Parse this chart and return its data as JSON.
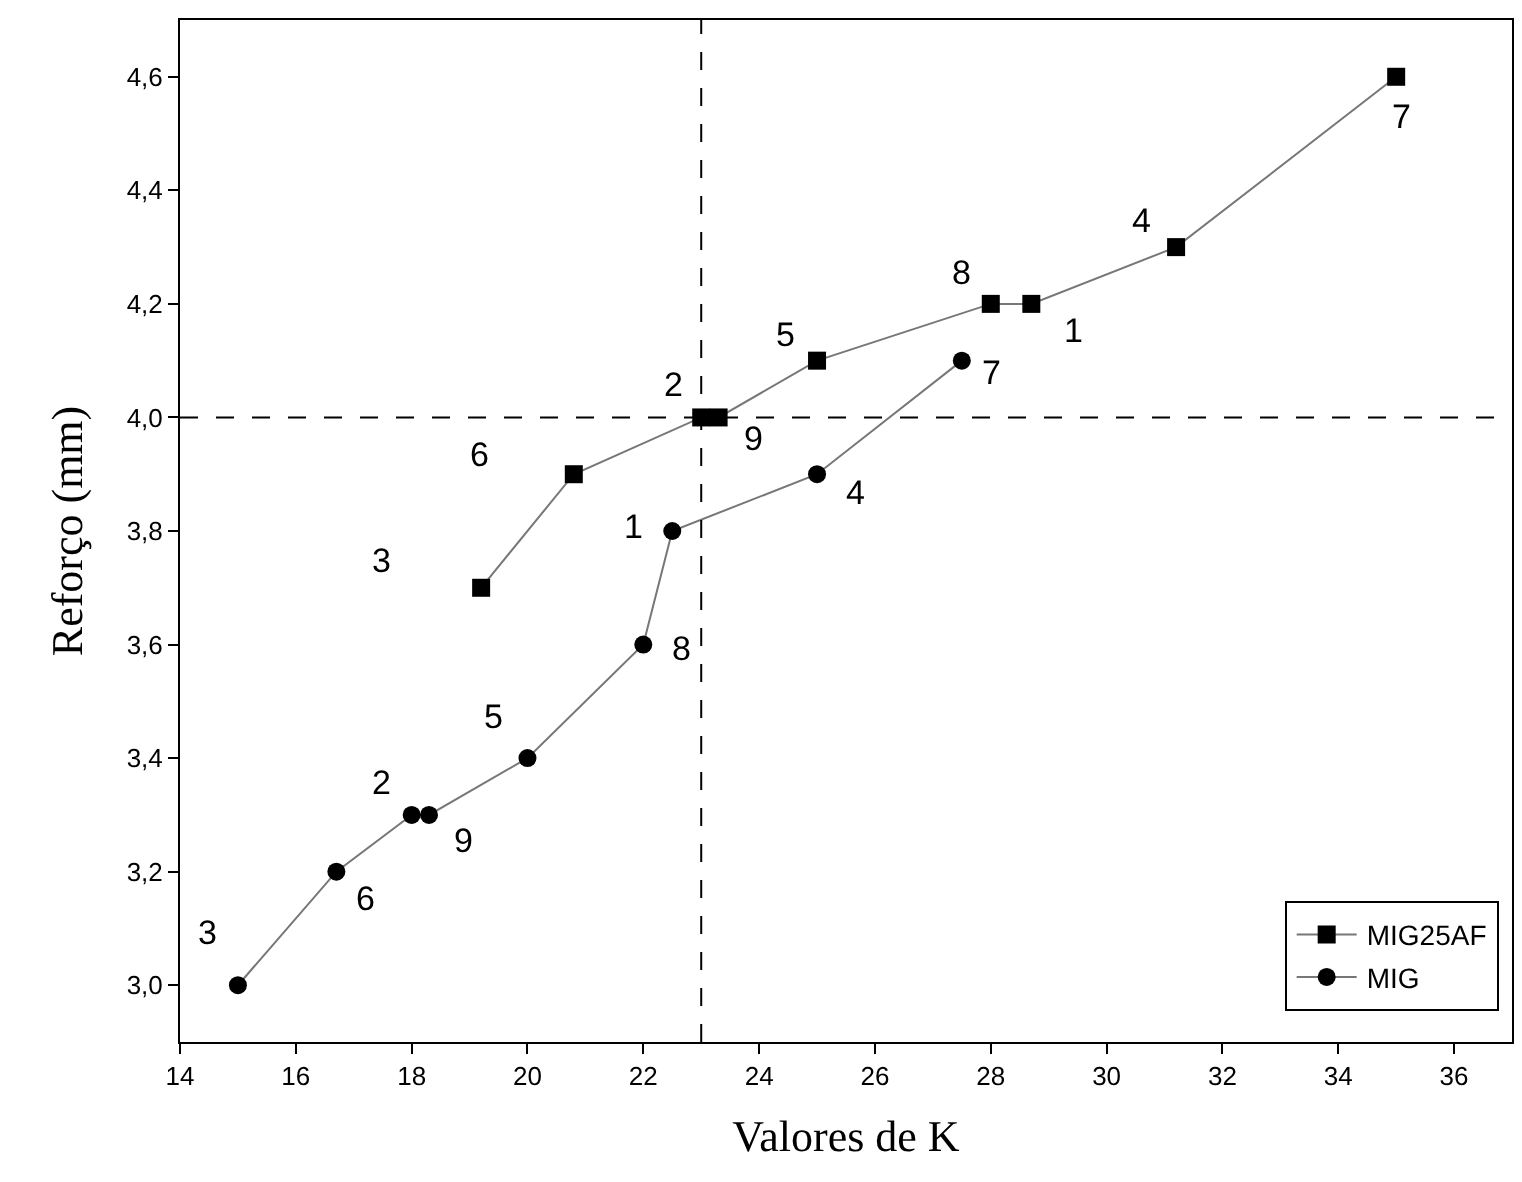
{
  "chart_data": {
    "type": "line",
    "xlabel": "Valores de K",
    "ylabel": "Reforço (mm)",
    "xlim": [
      14,
      37
    ],
    "xticks": [
      14,
      16,
      18,
      20,
      22,
      24,
      26,
      28,
      30,
      32,
      34,
      36
    ],
    "ylim": [
      2.9,
      4.7
    ],
    "yticks": [
      {
        "value": 3.0,
        "label": "3,0"
      },
      {
        "value": 3.2,
        "label": "3,2"
      },
      {
        "value": 3.4,
        "label": "3,4"
      },
      {
        "value": 3.6,
        "label": "3,6"
      },
      {
        "value": 3.8,
        "label": "3,8"
      },
      {
        "value": 4.0,
        "label": "4,0"
      },
      {
        "value": 4.2,
        "label": "4,2"
      },
      {
        "value": 4.4,
        "label": "4,4"
      },
      {
        "value": 4.6,
        "label": "4,6"
      }
    ],
    "legend": "bottom right",
    "line_style": "solid",
    "series": [
      {
        "name": "MIG25AF",
        "color": "#000000",
        "marker": "square",
        "x": [
          19.2,
          20.8,
          23.0,
          23.3,
          25.0,
          28.0,
          28.7,
          31.2,
          35.0
        ],
        "values": [
          3.7,
          3.9,
          4.0,
          4.0,
          4.1,
          4.2,
          4.2,
          4.3,
          4.6
        ]
      },
      {
        "name": "MIG",
        "color": "#000000",
        "marker": "circle",
        "x": [
          15.0,
          16.7,
          18.0,
          18.3,
          20.0,
          22.0,
          22.5,
          25.0,
          27.5
        ],
        "values": [
          3.0,
          3.2,
          3.3,
          3.3,
          3.4,
          3.6,
          3.8,
          3.9,
          4.1
        ]
      }
    ],
    "ref_lines": [
      {
        "axis": "x",
        "value": 23,
        "label": null,
        "line_style": "dashed"
      },
      {
        "axis": "y",
        "value": 4.0,
        "label": null,
        "line_style": "dashed"
      }
    ],
    "annotations": [
      {
        "text": "3",
        "x": 19.2,
        "y": 3.7
      },
      {
        "text": "6",
        "x": 20.8,
        "y": 3.9
      },
      {
        "text": "2",
        "x": 23.0,
        "y": 4.0
      },
      {
        "text": "9",
        "x": 23.3,
        "y": 4.0
      },
      {
        "text": "5",
        "x": 25.0,
        "y": 4.1
      },
      {
        "text": "8",
        "x": 28.0,
        "y": 4.2
      },
      {
        "text": "1",
        "x": 28.7,
        "y": 4.2
      },
      {
        "text": "4",
        "x": 31.2,
        "y": 4.3
      },
      {
        "text": "7",
        "x": 35.0,
        "y": 4.6
      },
      {
        "text": "3",
        "x": 15.0,
        "y": 3.0
      },
      {
        "text": "6",
        "x": 16.7,
        "y": 3.2
      },
      {
        "text": "2",
        "x": 18.0,
        "y": 3.3
      },
      {
        "text": "9",
        "x": 18.3,
        "y": 3.3
      },
      {
        "text": "5",
        "x": 20.0,
        "y": 3.4
      },
      {
        "text": "8",
        "x": 22.0,
        "y": 3.6
      },
      {
        "text": "1",
        "x": 22.5,
        "y": 3.8
      },
      {
        "text": "4",
        "x": 25.0,
        "y": 3.9
      },
      {
        "text": "7",
        "x": 27.5,
        "y": 4.1
      }
    ]
  }
}
